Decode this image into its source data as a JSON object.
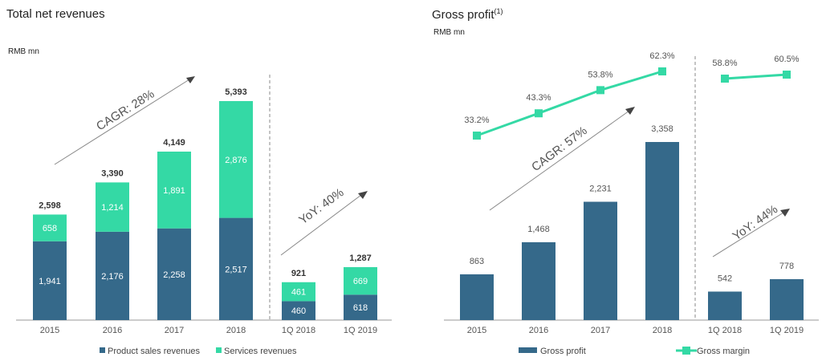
{
  "colors": {
    "product": "#35698A",
    "services": "#34D9A5",
    "gross": "#35698A",
    "margin": "#34D9A5"
  },
  "left": {
    "title": "Total net revenues",
    "unit": "RMB mn",
    "cagr": "CAGR: 28%",
    "yoy": "YoY: 40%"
  },
  "right": {
    "title": "Gross profit",
    "title_sup": "(1)",
    "unit": "RMB mn",
    "cagr": "CAGR: 57%",
    "yoy": "YoY: 44%"
  },
  "chart_data": [
    {
      "type": "bar",
      "stacked": true,
      "title": "Total net revenues",
      "ylabel": "RMB mn",
      "categories": [
        "2015",
        "2016",
        "2017",
        "2018",
        "1Q 2018",
        "1Q 2019"
      ],
      "series": [
        {
          "name": "Product sales revenues",
          "values": [
            1941,
            2176,
            2258,
            2517,
            460,
            618
          ],
          "labels": [
            "1,941",
            "2,176",
            "2,258",
            "2,517",
            "460",
            "618"
          ]
        },
        {
          "name": "Services revenues",
          "values": [
            658,
            1214,
            1891,
            2876,
            461,
            669
          ],
          "labels": [
            "658",
            "1,214",
            "1,891",
            "2,876",
            "461",
            "669"
          ]
        }
      ],
      "totals": [
        2598,
        3390,
        4149,
        5393,
        921,
        1287
      ],
      "total_labels": [
        "2,598",
        "3,390",
        "4,149",
        "5,393",
        "921",
        "1,287"
      ],
      "annual_ylim": [
        0,
        5393
      ],
      "quarterly_ylim": [
        0,
        1287
      ],
      "legend": "bottom"
    },
    {
      "type": "bar",
      "title": "Gross profit",
      "ylabel": "RMB mn",
      "categories": [
        "2015",
        "2016",
        "2017",
        "2018",
        "1Q 2018",
        "1Q 2019"
      ],
      "series": [
        {
          "name": "Gross profit",
          "type": "bar",
          "values": [
            863,
            1468,
            2231,
            3358,
            542,
            778
          ],
          "labels": [
            "863",
            "1,468",
            "2,231",
            "3,358",
            "542",
            "778"
          ]
        },
        {
          "name": "Gross margin",
          "type": "line",
          "values": [
            33.2,
            43.3,
            53.8,
            62.3,
            58.8,
            60.5
          ],
          "labels": [
            "33.2%",
            "43.3%",
            "53.8%",
            "62.3%",
            "58.8%",
            "60.5%"
          ]
        }
      ],
      "annual_ylim": [
        0,
        3358
      ],
      "quarterly_ylim": [
        0,
        778
      ],
      "legend": "bottom"
    }
  ]
}
